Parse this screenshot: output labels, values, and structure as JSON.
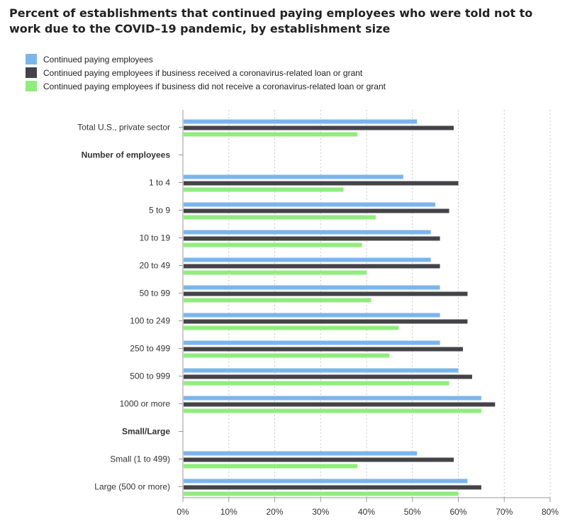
{
  "chart_data": {
    "type": "bar",
    "orientation": "horizontal",
    "title_lines": [
      "Percent of establishments that continued paying employees who were told not to",
      "work due to the COVID–19 pandemic, by establishment size"
    ],
    "categories": [
      {
        "label": "Total U.S., private sector",
        "heading": false
      },
      {
        "label": "Number of employees",
        "heading": true
      },
      {
        "label": "1 to 4",
        "heading": false
      },
      {
        "label": "5 to 9",
        "heading": false
      },
      {
        "label": "10 to 19",
        "heading": false
      },
      {
        "label": "20 to 49",
        "heading": false
      },
      {
        "label": "50 to 99",
        "heading": false
      },
      {
        "label": "100 to 249",
        "heading": false
      },
      {
        "label": "250 to 499",
        "heading": false
      },
      {
        "label": "500 to 999",
        "heading": false
      },
      {
        "label": "1000 or more",
        "heading": false
      },
      {
        "label": "Small/Large",
        "heading": true
      },
      {
        "label": "Small (1 to 499)",
        "heading": false
      },
      {
        "label": "Large (500 or more)",
        "heading": false
      }
    ],
    "series": [
      {
        "name": "Continued paying employees",
        "color": "#7cb5ec",
        "values": [
          51,
          null,
          48,
          55,
          54,
          54,
          56,
          56,
          56,
          60,
          65,
          null,
          51,
          62
        ]
      },
      {
        "name": "Continued paying employees if business received a coronavirus-related loan or grant",
        "color": "#434348",
        "values": [
          59,
          null,
          60,
          58,
          56,
          56,
          62,
          62,
          61,
          63,
          68,
          null,
          59,
          65
        ]
      },
      {
        "name": "Continued paying employees if business did not receive a coronavirus-related loan or grant",
        "color": "#90ed7d",
        "values": [
          38,
          null,
          35,
          42,
          39,
          40,
          41,
          47,
          45,
          58,
          65,
          null,
          38,
          60
        ]
      }
    ],
    "xlim": [
      0,
      80
    ],
    "xticks": [
      "0%",
      "10%",
      "20%",
      "30%",
      "40%",
      "50%",
      "60%",
      "70%",
      "80%"
    ],
    "grid": true,
    "legend_position": "top-left"
  }
}
